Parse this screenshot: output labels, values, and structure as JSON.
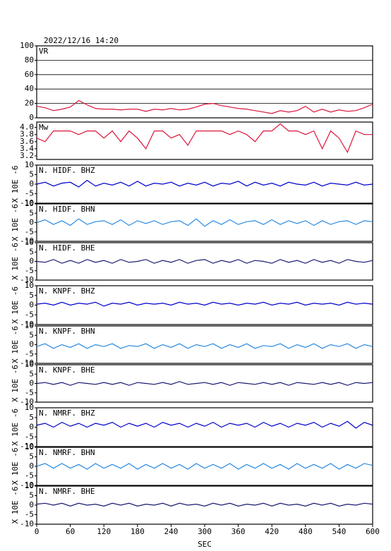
{
  "chart_data": [
    {
      "type": "line",
      "title": "2022/12/16 14:20",
      "ylim": [
        0,
        100
      ],
      "yticks": [
        0,
        20,
        40,
        60,
        80,
        100
      ],
      "grid": true,
      "xlim": [
        0,
        600
      ],
      "x": [
        0,
        15,
        30,
        45,
        60,
        75,
        90,
        105,
        120,
        135,
        150,
        165,
        180,
        195,
        210,
        225,
        240,
        255,
        270,
        285,
        300,
        315,
        330,
        345,
        360,
        375,
        390,
        405,
        420,
        435,
        450,
        465,
        480,
        495,
        510,
        525,
        540,
        555,
        570,
        585,
        600
      ],
      "series": [
        {
          "name": "VR",
          "color": "#dc143c",
          "values": [
            16,
            14,
            10,
            12,
            15,
            24,
            18,
            13,
            12,
            12,
            11,
            12,
            12,
            9,
            12,
            11,
            13,
            11,
            12,
            15,
            19,
            20,
            17,
            15,
            13,
            12,
            10,
            8,
            6,
            10,
            8,
            10,
            16,
            8,
            12,
            8,
            11,
            9,
            10,
            14,
            19
          ]
        }
      ]
    },
    {
      "type": "line",
      "ylim": [
        3.1,
        4.15
      ],
      "yticks": [
        {
          "value": 3.2,
          "label": "3.2"
        },
        {
          "value": 3.4,
          "label": "3.4"
        },
        {
          "value": 3.6,
          "label": "3.6"
        },
        {
          "value": 3.8,
          "label": "3.8"
        },
        {
          "value": 4,
          "label": "4.0"
        }
      ],
      "grid": false,
      "xlim": [
        0,
        600
      ],
      "x": [
        0,
        15,
        30,
        45,
        60,
        75,
        90,
        105,
        120,
        135,
        150,
        165,
        180,
        195,
        210,
        225,
        240,
        255,
        270,
        285,
        300,
        315,
        330,
        345,
        360,
        375,
        390,
        405,
        420,
        435,
        450,
        465,
        480,
        495,
        510,
        525,
        540,
        555,
        570,
        585,
        600
      ],
      "series": [
        {
          "name": "Mw",
          "color": "#dc143c",
          "values": [
            3.7,
            3.6,
            3.9,
            3.9,
            3.9,
            3.8,
            3.9,
            3.9,
            3.7,
            3.9,
            3.6,
            3.9,
            3.7,
            3.4,
            3.9,
            3.9,
            3.7,
            3.8,
            3.5,
            3.9,
            3.9,
            3.9,
            3.9,
            3.8,
            3.9,
            3.8,
            3.6,
            3.9,
            3.9,
            4.1,
            3.9,
            3.9,
            3.8,
            3.9,
            3.4,
            3.9,
            3.7,
            3.3,
            3.9,
            3.8,
            3.8
          ]
        }
      ]
    },
    {
      "type": "line",
      "ylabel": "X 10E -6",
      "ylim": [
        -10,
        10
      ],
      "yticks": [
        -10,
        -5,
        0,
        5,
        10
      ],
      "grid": false,
      "xlim": [
        0,
        600
      ],
      "x": [
        0,
        15,
        30,
        45,
        60,
        75,
        90,
        105,
        120,
        135,
        150,
        165,
        180,
        195,
        210,
        225,
        240,
        255,
        270,
        285,
        300,
        315,
        330,
        345,
        360,
        375,
        390,
        405,
        420,
        435,
        450,
        465,
        480,
        495,
        510,
        525,
        540,
        555,
        570,
        585,
        600
      ],
      "series": [
        {
          "name": "N. HIDF. BHZ",
          "color": "#0000cd",
          "values": [
            0,
            1,
            -1,
            0.5,
            1,
            -1.5,
            2,
            -1,
            0.5,
            -0.5,
            1,
            -1,
            1.5,
            -1,
            0.5,
            0,
            1,
            -1,
            0.5,
            -0.5,
            1,
            -1,
            0.5,
            0,
            1.5,
            -1,
            1,
            -0.5,
            0.5,
            -1,
            1,
            0,
            -0.5,
            1,
            -1,
            0.5,
            0,
            -0.5,
            1,
            -0.5,
            0
          ]
        }
      ]
    },
    {
      "type": "line",
      "ylabel": "X 10E -6",
      "ylim": [
        -10,
        10
      ],
      "yticks": [
        -10,
        -5,
        0,
        5,
        10
      ],
      "grid": false,
      "xlim": [
        0,
        600
      ],
      "x": [
        0,
        15,
        30,
        45,
        60,
        75,
        90,
        105,
        120,
        135,
        150,
        165,
        180,
        195,
        210,
        225,
        240,
        255,
        270,
        285,
        300,
        315,
        330,
        345,
        360,
        375,
        390,
        405,
        420,
        435,
        450,
        465,
        480,
        495,
        510,
        525,
        540,
        555,
        570,
        585,
        600
      ],
      "series": [
        {
          "name": "N. HIDF. BHN",
          "color": "#2a8ae0",
          "values": [
            0,
            1.5,
            -1,
            1,
            -1.5,
            2,
            -1,
            0.5,
            1,
            -1,
            1.5,
            -1.5,
            1,
            -0.5,
            1,
            -1,
            0.5,
            1,
            -1.5,
            2,
            -2,
            1,
            -1,
            1.5,
            -1,
            0.5,
            1,
            -1,
            1.5,
            -1,
            1,
            -0.5,
            1,
            -1.5,
            1,
            -1,
            0.5,
            1,
            -1,
            1,
            0.5
          ]
        }
      ]
    },
    {
      "type": "line",
      "ylabel": "X 10E -6",
      "ylim": [
        -10,
        10
      ],
      "yticks": [
        -10,
        -5,
        0,
        5,
        10
      ],
      "grid": false,
      "xlim": [
        0,
        600
      ],
      "x": [
        0,
        15,
        30,
        45,
        60,
        75,
        90,
        105,
        120,
        135,
        150,
        165,
        180,
        195,
        210,
        225,
        240,
        255,
        270,
        285,
        300,
        315,
        330,
        345,
        360,
        375,
        390,
        405,
        420,
        435,
        450,
        465,
        480,
        495,
        510,
        525,
        540,
        555,
        570,
        585,
        600
      ],
      "series": [
        {
          "name": "N. HIDF. BHE",
          "color": "#191970",
          "values": [
            0,
            -0.5,
            1,
            -1,
            0.5,
            -1,
            1,
            -0.5,
            0.5,
            -1,
            1,
            -0.5,
            0,
            1,
            -1,
            0.5,
            -0.5,
            1,
            -1,
            0.5,
            1,
            -1,
            0.5,
            -0.5,
            1,
            -1,
            0.5,
            0,
            -1,
            1,
            -0.5,
            0.5,
            -1,
            1,
            -0.5,
            0.5,
            -1,
            1,
            0,
            -0.5,
            0.5
          ]
        }
      ]
    },
    {
      "type": "line",
      "ylabel": "X 10E -6",
      "ylim": [
        -10,
        10
      ],
      "yticks": [
        -10,
        -5,
        0,
        5,
        10
      ],
      "grid": false,
      "xlim": [
        0,
        600
      ],
      "x": [
        0,
        15,
        30,
        45,
        60,
        75,
        90,
        105,
        120,
        135,
        150,
        165,
        180,
        195,
        210,
        225,
        240,
        255,
        270,
        285,
        300,
        315,
        330,
        345,
        360,
        375,
        390,
        405,
        420,
        435,
        450,
        465,
        480,
        495,
        510,
        525,
        540,
        555,
        570,
        585,
        600
      ],
      "series": [
        {
          "name": "N. KNPF. BHZ",
          "color": "#0000cd",
          "values": [
            0.5,
            1,
            0,
            1.5,
            0,
            1,
            0.5,
            1.5,
            -0.5,
            1,
            0.5,
            1.5,
            0,
            1,
            0.5,
            1,
            0,
            1.5,
            0.5,
            1,
            0,
            1.5,
            0.5,
            1,
            0,
            1,
            0.5,
            1.5,
            0,
            1,
            0.5,
            1.5,
            0,
            1,
            0.5,
            1,
            0,
            1.5,
            0.5,
            1,
            0.5
          ]
        }
      ]
    },
    {
      "type": "line",
      "ylabel": "X 10E -6",
      "ylim": [
        -10,
        10
      ],
      "yticks": [
        -10,
        -5,
        0,
        5,
        10
      ],
      "grid": false,
      "xlim": [
        0,
        600
      ],
      "x": [
        0,
        15,
        30,
        45,
        60,
        75,
        90,
        105,
        120,
        135,
        150,
        165,
        180,
        195,
        210,
        225,
        240,
        255,
        270,
        285,
        300,
        315,
        330,
        345,
        360,
        375,
        390,
        405,
        420,
        435,
        450,
        465,
        480,
        495,
        510,
        525,
        540,
        555,
        570,
        585,
        600
      ],
      "series": [
        {
          "name": "N. KNPF. BHN",
          "color": "#2a8ae0",
          "values": [
            -1,
            0.5,
            -2,
            0,
            -1.5,
            0.5,
            -2,
            0,
            -1,
            0.5,
            -2,
            -0.5,
            -1,
            0.5,
            -2,
            0,
            -1.5,
            0.5,
            -2,
            0,
            -1,
            0.5,
            -2,
            0,
            -1.5,
            0.5,
            -2,
            -0.5,
            -1,
            0.5,
            -2,
            0,
            -1.5,
            0.5,
            -2,
            0,
            -1,
            0.5,
            -2,
            0,
            -1
          ]
        }
      ]
    },
    {
      "type": "line",
      "ylabel": "X 10E -6",
      "ylim": [
        -10,
        10
      ],
      "yticks": [
        -10,
        -5,
        0,
        5,
        10
      ],
      "grid": false,
      "xlim": [
        0,
        600
      ],
      "x": [
        0,
        15,
        30,
        45,
        60,
        75,
        90,
        105,
        120,
        135,
        150,
        165,
        180,
        195,
        210,
        225,
        240,
        255,
        270,
        285,
        300,
        315,
        330,
        345,
        360,
        375,
        390,
        405,
        420,
        435,
        450,
        465,
        480,
        495,
        510,
        525,
        540,
        555,
        570,
        585,
        600
      ],
      "series": [
        {
          "name": "N. KNPF. BHE",
          "color": "#191970",
          "values": [
            0,
            0.5,
            -0.5,
            0.5,
            -1,
            0.5,
            0,
            -0.5,
            0.5,
            -0.5,
            0.5,
            -1,
            0.5,
            0,
            -0.5,
            0.5,
            -0.5,
            1,
            -0.5,
            0,
            0.5,
            -0.5,
            0.5,
            -1,
            0.5,
            0,
            -0.5,
            0.5,
            -0.5,
            0.5,
            -1,
            0.5,
            0,
            -0.5,
            0.5,
            -0.5,
            0.5,
            -1,
            0.5,
            0,
            0.5
          ]
        }
      ]
    },
    {
      "type": "line",
      "ylabel": "X 10E -6",
      "ylim": [
        -10,
        10
      ],
      "yticks": [
        -10,
        -5,
        0,
        5,
        10
      ],
      "grid": false,
      "xlim": [
        0,
        600
      ],
      "x": [
        0,
        15,
        30,
        45,
        60,
        75,
        90,
        105,
        120,
        135,
        150,
        165,
        180,
        195,
        210,
        225,
        240,
        255,
        270,
        285,
        300,
        315,
        330,
        345,
        360,
        375,
        390,
        405,
        420,
        435,
        450,
        465,
        480,
        495,
        510,
        525,
        540,
        555,
        570,
        585,
        600
      ],
      "series": [
        {
          "name": "N. NMRF. BHZ",
          "color": "#0000cd",
          "values": [
            1,
            2,
            0,
            2.5,
            0.5,
            2,
            0,
            2,
            1,
            2.5,
            0,
            2,
            0.5,
            2,
            0,
            2.5,
            1,
            2,
            0,
            2,
            0.5,
            2.5,
            0,
            2,
            1,
            2,
            0,
            2.5,
            0.5,
            2,
            0,
            2,
            1,
            2.5,
            0,
            2,
            0.5,
            3,
            -0.5,
            2.5,
            1
          ]
        }
      ]
    },
    {
      "type": "line",
      "ylabel": "X 10E -6",
      "ylim": [
        -10,
        10
      ],
      "yticks": [
        -10,
        -5,
        0,
        5,
        10
      ],
      "grid": false,
      "xlim": [
        0,
        600
      ],
      "x": [
        0,
        15,
        30,
        45,
        60,
        75,
        90,
        105,
        120,
        135,
        150,
        165,
        180,
        195,
        210,
        225,
        240,
        255,
        270,
        285,
        300,
        315,
        330,
        345,
        360,
        375,
        390,
        405,
        420,
        435,
        450,
        465,
        480,
        495,
        510,
        525,
        540,
        555,
        570,
        585,
        600
      ],
      "series": [
        {
          "name": "N. NMRF. BHN",
          "color": "#2a8ae0",
          "values": [
            0,
            1.5,
            -1,
            1.5,
            -1,
            1,
            -1.5,
            1.5,
            -1,
            1,
            -1,
            1.5,
            -1.5,
            1,
            -1,
            1.5,
            -1,
            1,
            -1.5,
            1.5,
            -1,
            1,
            -1,
            1.5,
            -1.5,
            1,
            -1,
            1.5,
            -1,
            1,
            -1.5,
            1.5,
            -1,
            1,
            -1,
            1.5,
            -1.5,
            1,
            -1,
            1.5,
            0.5
          ]
        }
      ]
    },
    {
      "type": "line",
      "ylabel": "X 10E -6",
      "xlabel": "SEC",
      "ylim": [
        -10,
        10
      ],
      "yticks": [
        -10,
        -5,
        0,
        5,
        10
      ],
      "grid": false,
      "xlim": [
        0,
        600
      ],
      "xticks": [
        0,
        60,
        120,
        180,
        240,
        300,
        360,
        420,
        480,
        540,
        600
      ],
      "x": [
        0,
        15,
        30,
        45,
        60,
        75,
        90,
        105,
        120,
        135,
        150,
        165,
        180,
        195,
        210,
        225,
        240,
        255,
        270,
        285,
        300,
        315,
        330,
        345,
        360,
        375,
        390,
        405,
        420,
        435,
        450,
        465,
        480,
        495,
        510,
        525,
        540,
        555,
        570,
        585,
        600
      ],
      "series": [
        {
          "name": "N. NMRF. BHE",
          "color": "#191970",
          "values": [
            0.5,
            1,
            0,
            1,
            -0.5,
            1,
            0,
            0.5,
            -0.5,
            1,
            0,
            1,
            -0.5,
            0.5,
            0,
            1,
            -0.5,
            1,
            0,
            0.5,
            -0.5,
            1,
            0,
            1,
            -0.5,
            0.5,
            0,
            1,
            -0.5,
            1,
            0,
            0.5,
            -0.5,
            1,
            0,
            1,
            -0.5,
            0.5,
            0,
            1,
            0.5
          ]
        }
      ]
    }
  ]
}
